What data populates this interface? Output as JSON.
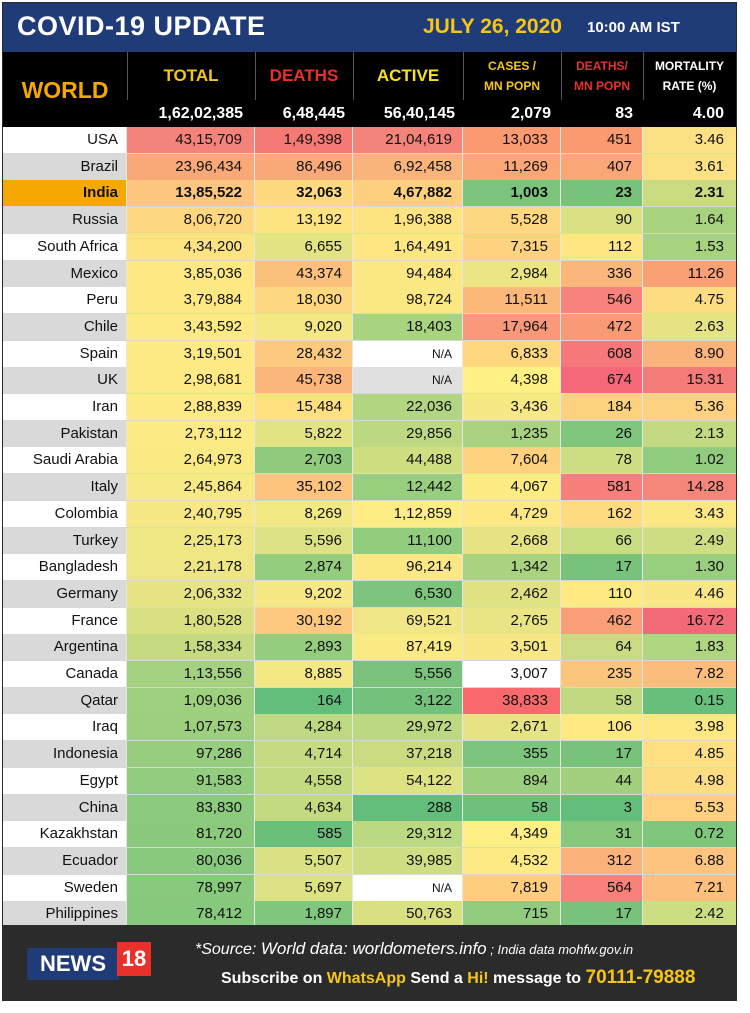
{
  "header": {
    "title": "COVID-19 UPDATE",
    "date": "JULY 26, 2020",
    "time": "10:00 AM IST"
  },
  "columns": {
    "world": "WORLD",
    "total": "TOTAL",
    "deaths": "DEATHS",
    "active": "ACTIVE",
    "cases_line1": "CASES /",
    "cases_line2": "MN POPN",
    "dmn_line1": "DEATHS/",
    "dmn_line2": "MN POPN",
    "mort_line1": "MORTALITY",
    "mort_line2": "RATE (%)"
  },
  "world_totals": {
    "total": "1,62,02,385",
    "deaths": "6,48,445",
    "active": "56,40,145",
    "cases_per_mn": "2,079",
    "deaths_per_mn": "83",
    "mortality": "4.00"
  },
  "rows": [
    {
      "name": "USA",
      "total": "43,15,709",
      "deaths": "1,49,398",
      "active": "21,04,619",
      "cases": "13,033",
      "dmn": "451",
      "mort": "3.46",
      "bg": [
        "#f4837a",
        "#f47a73",
        "#f4837a",
        "#fb9a70",
        "#fb9a70",
        "#fbe084"
      ]
    },
    {
      "name": "Brazil",
      "total": "23,96,434",
      "deaths": "86,496",
      "active": "6,92,458",
      "cases": "11,269",
      "dmn": "407",
      "mort": "3.61",
      "bg": [
        "#f9a878",
        "#f9a878",
        "#f9b47c",
        "#fba677",
        "#fba677",
        "#fbe084"
      ]
    },
    {
      "name": "India",
      "total": "13,85,522",
      "deaths": "32,063",
      "active": "4,67,882",
      "cases": "1,003",
      "dmn": "23",
      "mort": "2.31",
      "bg": [
        "#fcc580",
        "#fed97f",
        "#fdd07f",
        "#7cc47c",
        "#78c27b",
        "#c8db80"
      ]
    },
    {
      "name": "Russia",
      "total": "8,06,720",
      "deaths": "13,192",
      "active": "1,96,388",
      "cases": "5,528",
      "dmn": "90",
      "mort": "1.64",
      "bg": [
        "#fed880",
        "#fee382",
        "#fee382",
        "#fed880",
        "#d9e182",
        "#a7d27e"
      ]
    },
    {
      "name": "South Africa",
      "total": "4,34,200",
      "deaths": "6,655",
      "active": "1,64,491",
      "cases": "7,315",
      "dmn": "112",
      "mort": "1.53",
      "bg": [
        "#fee382",
        "#e3e383",
        "#fee683",
        "#fed27f",
        "#fee683",
        "#a7d27e"
      ]
    },
    {
      "name": "Mexico",
      "total": "3,85,036",
      "deaths": "43,374",
      "active": "94,484",
      "cases": "2,984",
      "dmn": "336",
      "mort": "11.26",
      "bg": [
        "#fee883",
        "#fcc07d",
        "#fbe884",
        "#ece584",
        "#fbb77b",
        "#f9a075"
      ]
    },
    {
      "name": "Peru",
      "total": "3,79,884",
      "deaths": "18,030",
      "active": "98,724",
      "cases": "11,511",
      "dmn": "546",
      "mort": "4.75",
      "bg": [
        "#fee883",
        "#fed880",
        "#fbe884",
        "#fcb87b",
        "#f8837a",
        "#fedd82"
      ]
    },
    {
      "name": "Chile",
      "total": "3,43,592",
      "deaths": "9,020",
      "active": "18,403",
      "cases": "17,964",
      "dmn": "472",
      "mort": "2.63",
      "bg": [
        "#feea84",
        "#f4e884",
        "#a8d37f",
        "#f9997a",
        "#f99a77",
        "#e6e385"
      ]
    },
    {
      "name": "Spain",
      "total": "3,19,501",
      "deaths": "28,432",
      "active": "N/A",
      "cases": "6,833",
      "dmn": "608",
      "mort": "8.90",
      "bg": [
        "#feea84",
        "#fcca7e",
        "#ffffff",
        "#fed77f",
        "#f6787a",
        "#fbb37c"
      ]
    },
    {
      "name": "UK",
      "total": "2,98,681",
      "deaths": "45,738",
      "active": "N/A",
      "cases": "4,398",
      "dmn": "674",
      "mort": "15.31",
      "bg": [
        "#feea84",
        "#fbb67b",
        "#e0e0e0",
        "#fef083",
        "#f4687a",
        "#f57b78"
      ]
    },
    {
      "name": "Iran",
      "total": "2,88,839",
      "deaths": "15,484",
      "active": "22,036",
      "cases": "3,436",
      "dmn": "184",
      "mort": "5.36",
      "bg": [
        "#feea84",
        "#fee081",
        "#b1d580",
        "#f6e885",
        "#fcd27f",
        "#fcd280"
      ]
    },
    {
      "name": "Pakistan",
      "total": "2,73,112",
      "deaths": "5,822",
      "active": "29,856",
      "cases": "1,235",
      "dmn": "26",
      "mort": "2.13",
      "bg": [
        "#fcea84",
        "#e2e383",
        "#bcd981",
        "#a8d27f",
        "#80c67d",
        "#c4da81"
      ]
    },
    {
      "name": "Saudi Arabia",
      "total": "2,64,973",
      "deaths": "2,703",
      "active": "44,488",
      "cases": "7,604",
      "dmn": "78",
      "mort": "1.02",
      "bg": [
        "#faea84",
        "#8fcb7d",
        "#d0de82",
        "#fed17f",
        "#cede82",
        "#90cb7e"
      ]
    },
    {
      "name": "Italy",
      "total": "2,45,864",
      "deaths": "35,102",
      "active": "12,442",
      "cases": "4,067",
      "dmn": "581",
      "mort": "14.28",
      "bg": [
        "#f7e985",
        "#fcc47d",
        "#98cf7e",
        "#fdeb84",
        "#f7807b",
        "#f6857a"
      ]
    },
    {
      "name": "Colombia",
      "total": "2,40,795",
      "deaths": "8,269",
      "active": "1,12,859",
      "cases": "4,729",
      "dmn": "162",
      "mort": "3.43",
      "bg": [
        "#f5e885",
        "#f2e884",
        "#feec84",
        "#fee883",
        "#fedb81",
        "#fbe884"
      ]
    },
    {
      "name": "Turkey",
      "total": "2,25,173",
      "deaths": "5,596",
      "active": "11,100",
      "cases": "2,668",
      "dmn": "66",
      "mort": "2.49",
      "bg": [
        "#efe784",
        "#dbe283",
        "#92cc7d",
        "#e6e384",
        "#c8dc82",
        "#cfde82"
      ]
    },
    {
      "name": "Bangladesh",
      "total": "2,21,178",
      "deaths": "2,874",
      "active": "96,214",
      "cases": "1,342",
      "dmn": "17",
      "mort": "1.30",
      "bg": [
        "#eee684",
        "#94cd7e",
        "#fbe884",
        "#aad37f",
        "#78c27b",
        "#99ce7e"
      ]
    },
    {
      "name": "Germany",
      "total": "2,06,332",
      "deaths": "9,202",
      "active": "6,530",
      "cases": "2,462",
      "dmn": "110",
      "mort": "4.46",
      "bg": [
        "#e6e484",
        "#f5e885",
        "#7dc47c",
        "#dfe183",
        "#fee983",
        "#f9e785"
      ]
    },
    {
      "name": "France",
      "total": "1,80,528",
      "deaths": "30,192",
      "active": "69,521",
      "cases": "2,765",
      "dmn": "462",
      "mort": "16.72",
      "bg": [
        "#d8e082",
        "#fcc97f",
        "#f1e685",
        "#e9e584",
        "#fa9e77",
        "#f26a78"
      ]
    },
    {
      "name": "Argentina",
      "total": "1,58,334",
      "deaths": "2,893",
      "active": "87,419",
      "cases": "3,501",
      "dmn": "64",
      "mort": "1.83",
      "bg": [
        "#c6da81",
        "#95cd7e",
        "#faea84",
        "#f8e885",
        "#c8db82",
        "#b0d580"
      ]
    },
    {
      "name": "Canada",
      "total": "1,13,556",
      "deaths": "8,885",
      "active": "5,556",
      "cases": "3,007",
      "dmn": "235",
      "mort": "7.82",
      "bg": [
        "#a3d17f",
        "#f4e885",
        "#7bc37c",
        "#edе684",
        "#fcc57e",
        "#fbbc7c"
      ]
    },
    {
      "name": "Qatar",
      "total": "1,09,036",
      "deaths": "164",
      "active": "3,122",
      "cases": "38,833",
      "dmn": "58",
      "mort": "0.15",
      "bg": [
        "#9fd07f",
        "#63be7b",
        "#74c17b",
        "#f8696b",
        "#c1d981",
        "#66bf7b"
      ]
    },
    {
      "name": "Iraq",
      "total": "1,07,573",
      "deaths": "4,284",
      "active": "29,972",
      "cases": "2,671",
      "dmn": "106",
      "mort": "3.98",
      "bg": [
        "#9ecf7f",
        "#bed981",
        "#bcd981",
        "#e6e384",
        "#fee983",
        "#fee883"
      ]
    },
    {
      "name": "Indonesia",
      "total": "97,286",
      "deaths": "4,714",
      "active": "37,218",
      "cases": "355",
      "dmn": "17",
      "mort": "4.85",
      "bg": [
        "#96cd7e",
        "#c5da81",
        "#c8db81",
        "#7dc47c",
        "#78c27b",
        "#fee083"
      ]
    },
    {
      "name": "Egypt",
      "total": "91,583",
      "deaths": "4,558",
      "active": "54,122",
      "cases": "894",
      "dmn": "44",
      "mort": "4.98",
      "bg": [
        "#92cc7e",
        "#c3da81",
        "#dde282",
        "#9bce7f",
        "#a2d07f",
        "#fedc82"
      ]
    },
    {
      "name": "China",
      "total": "83,830",
      "deaths": "4,634",
      "active": "288",
      "cases": "58",
      "dmn": "3",
      "mort": "5.53",
      "bg": [
        "#8cca7d",
        "#c4da81",
        "#63be7b",
        "#6ec07c",
        "#63be7b",
        "#fdd17f"
      ]
    },
    {
      "name": "Kazakhstan",
      "total": "81,720",
      "deaths": "585",
      "active": "29,312",
      "cases": "4,349",
      "dmn": "31",
      "mort": "0.72",
      "bg": [
        "#8bca7d",
        "#6ac07b",
        "#bbd981",
        "#feef84",
        "#88c87c",
        "#7ec67c"
      ]
    },
    {
      "name": "Ecuador",
      "total": "80,036",
      "deaths": "5,507",
      "active": "39,985",
      "cases": "4,532",
      "dmn": "312",
      "mort": "6.88",
      "bg": [
        "#89c97d",
        "#d9e182",
        "#cfde82",
        "#feea84",
        "#fcb37b",
        "#fcc47e"
      ]
    },
    {
      "name": "Sweden",
      "total": "78,997",
      "deaths": "5,697",
      "active": "N/A",
      "cases": "7,819",
      "dmn": "564",
      "mort": "7.21",
      "bg": [
        "#88c97d",
        "#dce283",
        "#ffffff",
        "#fecd7e",
        "#f8817a",
        "#fcbf7d"
      ]
    },
    {
      "name": "Philippines",
      "total": "78,412",
      "deaths": "1,897",
      "active": "50,763",
      "cases": "715",
      "dmn": "17",
      "mort": "2.42",
      "bg": [
        "#87c97c",
        "#80c67c",
        "#d9e082",
        "#91cb7e",
        "#78c27b",
        "#cdde82"
      ]
    }
  ],
  "name_bg": {
    "odd": "#ffffff",
    "even": "#d9d9d9",
    "highlight": "#f5a800"
  },
  "footer": {
    "logo_text": "NEWS",
    "logo_num": "18",
    "source_prefix": "*Source: ",
    "source_world": "World data: worldometers.info",
    "source_sep": " ; ",
    "source_india": "India data mohfw.gov.in",
    "sub_1": "Subscribe on ",
    "sub_whatsapp": "WhatsApp",
    "sub_2": " Send a ",
    "sub_hi": "Hi!",
    "sub_3": " message to ",
    "sub_number": "70111-79888"
  }
}
